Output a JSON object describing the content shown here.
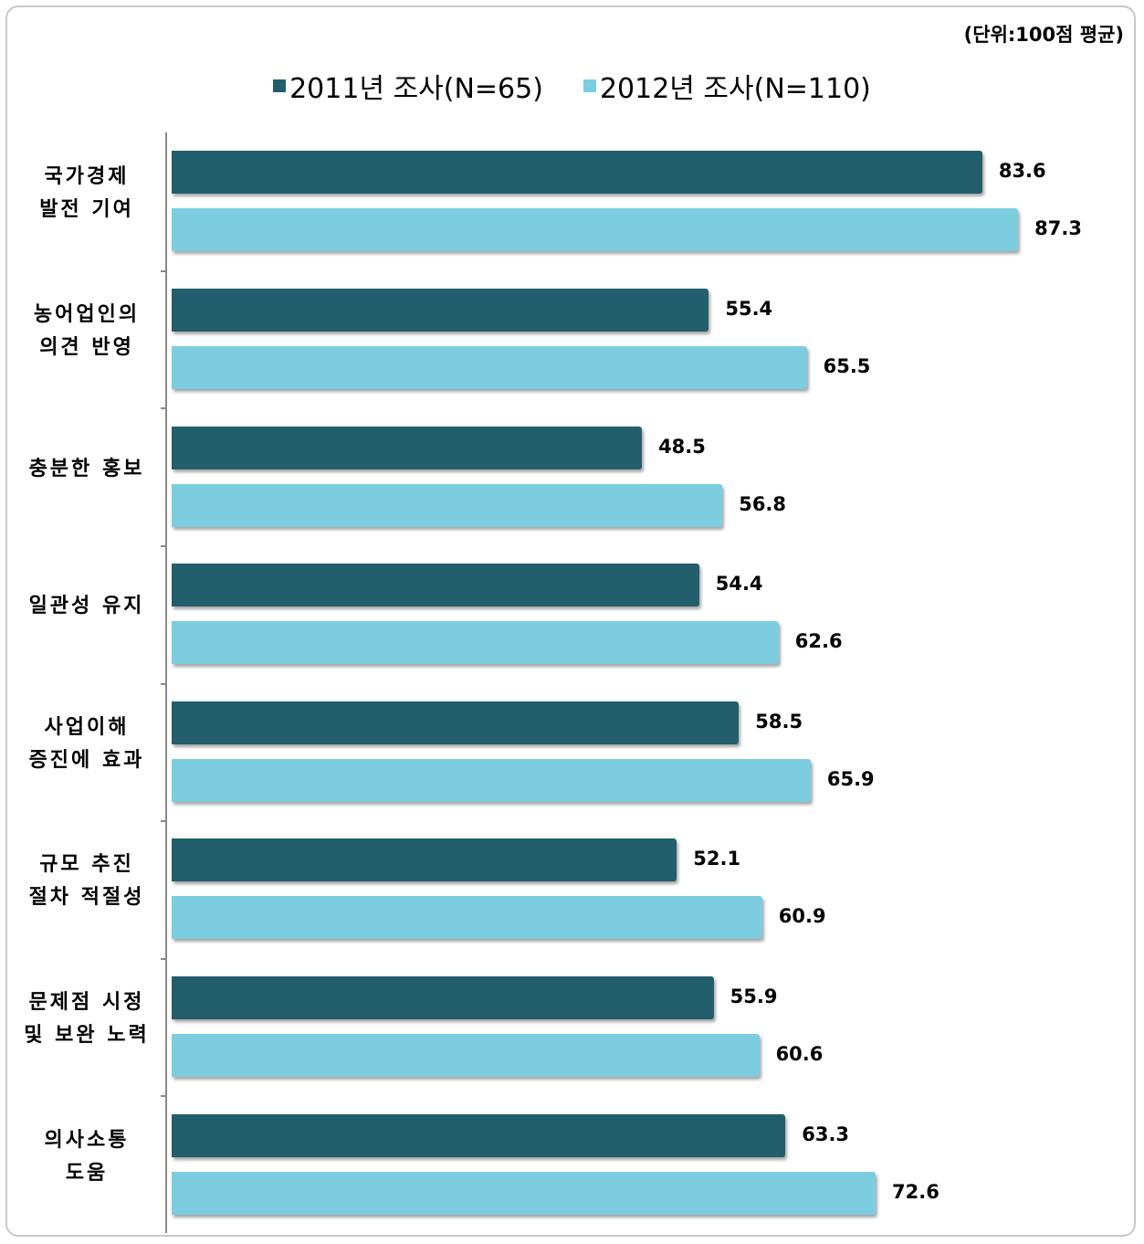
{
  "chart_data": {
    "type": "barh",
    "annotation": "(단위:100점 평균)",
    "categories": [
      "국가경제\n발전 기여",
      "농어업인의\n의견 반영",
      "충분한 홍보",
      "일관성 유지",
      "사업이해\n증진에 효과",
      "규모 추진\n절차 적절성",
      "문제점 시정\n및 보완 노력",
      "의사소통\n도움"
    ],
    "series": [
      {
        "name": "2011년 조사(N=65)",
        "color": "#235e6c",
        "values": [
          83.6,
          55.4,
          48.5,
          54.4,
          58.5,
          52.1,
          55.9,
          63.3
        ]
      },
      {
        "name": "2012년 조사(N=110)",
        "color": "#7ccde0",
        "values": [
          87.3,
          65.5,
          56.8,
          62.6,
          65.9,
          60.9,
          60.6,
          72.6
        ]
      }
    ],
    "xlim": [
      0,
      100
    ],
    "legend": "top"
  }
}
